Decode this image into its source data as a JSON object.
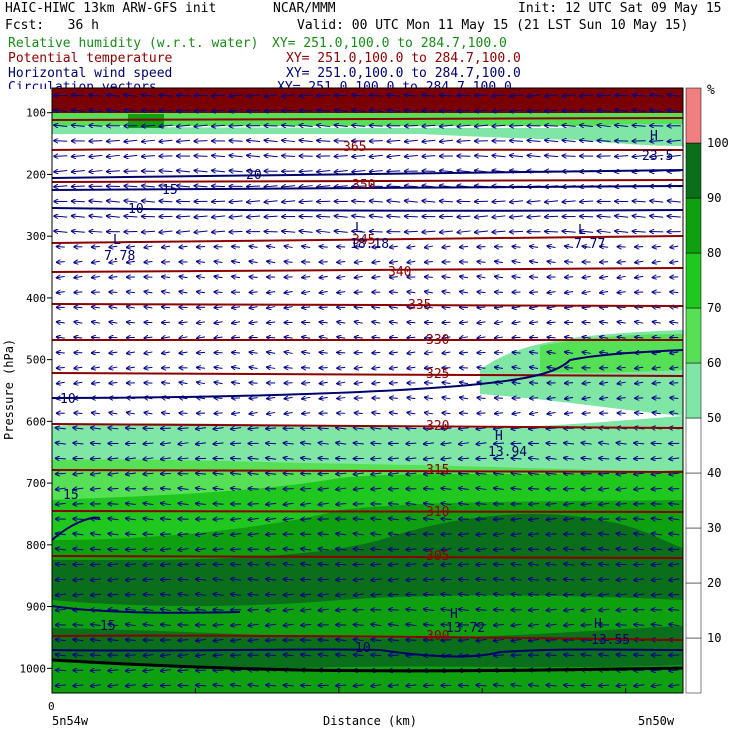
{
  "header": {
    "model": "HAIC-HIWC 13km ARW-GFS init",
    "center": "NCAR/MMM",
    "init": "Init: 12 UTC Sat 09 May 15",
    "fcst": "Fcst:   36 h",
    "valid": "Valid: 00 UTC Mon 11 May 15 (21 LST Sun 10 May 15)",
    "fields": [
      {
        "name": "Relative humidity (w.r.t. water)",
        "xy": "XY= 251.0,100.0 to 284.7,100.0",
        "color": "#1a8a1a"
      },
      {
        "name": "Potential temperature",
        "xy": "XY= 251.0,100.0 to 284.7,100.0",
        "color": "#8b0000"
      },
      {
        "name": "Horizontal wind speed",
        "xy": "XY= 251.0,100.0 to 284.7,100.0",
        "color": "#00006b"
      },
      {
        "name": "Circulation vectors",
        "xy": "XY= 251.0,100.0 to 284.7,100.0",
        "color": "#00008b"
      }
    ]
  },
  "chart_data": {
    "type": "heatmap",
    "title": "",
    "xlabel": "Distance (km)",
    "ylabel": "Pressure (hPa)",
    "x_tick_values": [
      0
    ],
    "x_tick_labels": [
      "0"
    ],
    "x_endpoint_labels": [
      "5n54w",
      "5n50w"
    ],
    "y_ticks": [
      100,
      200,
      300,
      400,
      500,
      600,
      700,
      800,
      900,
      1000
    ],
    "ylim": [
      1040,
      60
    ],
    "colorbar": {
      "unit": "%",
      "levels": [
        10,
        20,
        30,
        40,
        50,
        60,
        70,
        80,
        90,
        100
      ],
      "colors": [
        "#ffffff",
        "#ffffff",
        "#ffffff",
        "#ffffff",
        "#ffffff",
        "#7fe6a5",
        "#55e055",
        "#1fc71f",
        "#0fa00f",
        "#0a6e1a",
        "#f08080"
      ]
    },
    "theta_contours": [
      {
        "value": 345,
        "p": 238
      },
      {
        "value": 340,
        "p": 352
      },
      {
        "value": 335,
        "p": 405
      },
      {
        "value": 330,
        "p": 462
      },
      {
        "value": 325,
        "p": 523
      },
      {
        "value": 320,
        "p": 598
      },
      {
        "value": 315,
        "p": 674
      },
      {
        "value": 310,
        "p": 742
      },
      {
        "value": 305,
        "p": 822
      },
      {
        "value": 300,
        "p": 942
      }
    ],
    "theta_labels": [
      "365",
      "350",
      "345",
      "340",
      "335",
      "330",
      "325",
      "320",
      "315",
      "310",
      "305",
      "300"
    ],
    "wind_labels": [
      "20",
      "15",
      "10",
      "10",
      "15",
      "15",
      "10"
    ],
    "extrema": [
      {
        "kind": "L",
        "value": "18.18"
      },
      {
        "kind": "L",
        "value": "7.78"
      },
      {
        "kind": "L",
        "value": "7.77"
      },
      {
        "kind": "H",
        "value": "13.94"
      },
      {
        "kind": "H",
        "value": "13.72"
      },
      {
        "kind": "H",
        "value": "13.55"
      },
      {
        "kind": "H",
        "value": "23.5"
      }
    ]
  }
}
